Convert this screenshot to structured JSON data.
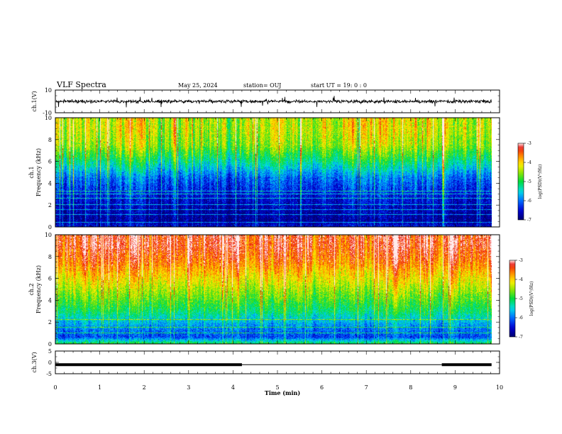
{
  "header": {
    "title": "VLF Spectra",
    "date": "May 25, 2024",
    "station": "station= OUJ",
    "start_ut": "start  UT =   19: 0  : 0"
  },
  "chart_data": [
    {
      "type": "line",
      "name": "ch1-waveform",
      "ylabel": "ch.1(V)",
      "ylim": [
        -10,
        10
      ],
      "yticks": [
        "10",
        "-10"
      ],
      "xlim": [
        0,
        10
      ],
      "description_values": {
        "baseline": 0,
        "noise_amplitude": 1.5,
        "spike_amplitude": 3
      }
    },
    {
      "type": "heatmap",
      "name": "ch1-spectrogram",
      "ylabel": "ch.1\nFrequency (kHz)",
      "ylabel_lines": [
        "ch.1",
        "Frequency (kHz)"
      ],
      "ylim": [
        0,
        10
      ],
      "yticks": [
        "0",
        "2",
        "4",
        "6",
        "8",
        "10"
      ],
      "xlim": [
        0,
        9.82
      ],
      "colorbar": {
        "label": "log(PSD)(V²/Hz)",
        "range": [
          -7,
          -3
        ],
        "ticks": [
          "-3",
          "-4",
          "-5",
          "-6",
          "-7"
        ]
      },
      "profile": [
        {
          "f": 0,
          "level": -6.5
        },
        {
          "f": 0.5,
          "level": -6.8
        },
        {
          "f": 1.5,
          "level": -6.7
        },
        {
          "f": 3.0,
          "level": -6.4
        },
        {
          "f": 4.5,
          "level": -6.0
        },
        {
          "f": 6.0,
          "level": -5.2
        },
        {
          "f": 7.5,
          "level": -4.5
        },
        {
          "f": 9.0,
          "level": -4.3
        },
        {
          "f": 10.0,
          "level": -4.3
        }
      ],
      "bands_khz": [
        0.4,
        1.1,
        1.6,
        2.0,
        2.6,
        3.0,
        3.3
      ]
    },
    {
      "type": "heatmap",
      "name": "ch2-spectrogram",
      "ylabel": "ch.2\nFrequency (kHz)",
      "ylabel_lines": [
        "ch.2",
        "Frequency (kHz)"
      ],
      "ylim": [
        0,
        10
      ],
      "yticks": [
        "0",
        "2",
        "4",
        "6",
        "8",
        "10"
      ],
      "xlim": [
        0,
        9.82
      ],
      "colorbar": {
        "label": "log(PSD)(V²/Hz)",
        "range": [
          -7,
          -3
        ],
        "ticks": [
          "-3",
          "-4",
          "-5",
          "-6",
          "-7"
        ]
      },
      "profile": [
        {
          "f": 0,
          "level": -5.0
        },
        {
          "f": 0.6,
          "level": -6.2
        },
        {
          "f": 1.5,
          "level": -5.9
        },
        {
          "f": 3.0,
          "level": -5.1
        },
        {
          "f": 4.5,
          "level": -4.6
        },
        {
          "f": 6.0,
          "level": -4.1
        },
        {
          "f": 7.5,
          "level": -3.6
        },
        {
          "f": 9.0,
          "level": -3.3
        },
        {
          "f": 10.0,
          "level": -3.3
        }
      ],
      "bands_khz": [
        1.0,
        1.5,
        2.2
      ]
    },
    {
      "type": "line",
      "name": "ch3-trace",
      "ylabel": "ch.3(V)",
      "ylim": [
        -5,
        5
      ],
      "yticks": [
        "5",
        "0",
        "-5"
      ],
      "xlim": [
        0,
        10
      ],
      "segments": [
        {
          "x": [
            0,
            4.2
          ],
          "y": -1.0,
          "weight": "thick"
        },
        {
          "x": [
            4.2,
            8.7
          ],
          "y": -1.0,
          "weight": "thin"
        },
        {
          "x": [
            8.7,
            9.82
          ],
          "y": -1.0,
          "weight": "thick"
        }
      ]
    }
  ],
  "xaxis": {
    "label": "Time (min)",
    "ticks": [
      "0",
      "1",
      "2",
      "3",
      "4",
      "5",
      "6",
      "7",
      "8",
      "9",
      "10"
    ],
    "range": [
      0,
      10
    ]
  }
}
